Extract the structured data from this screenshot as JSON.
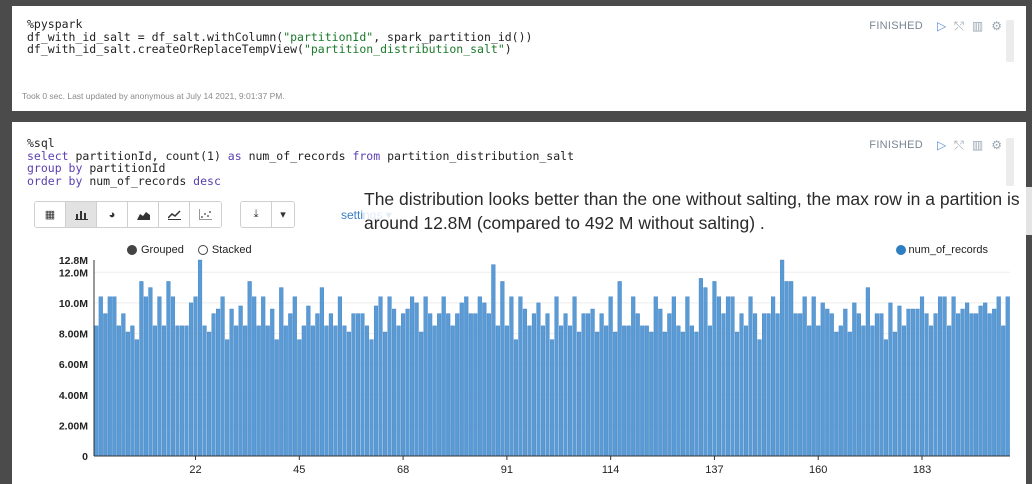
{
  "paragraph1": {
    "code_lines": [
      "%pyspark",
      "df_with_id_salt = df_salt.withColumn(\"partitionId\", spark_partition_id())",
      "df_with_id_salt.createOrReplaceTempView(\"partition_distribution_salt\")"
    ],
    "status": "FINISHED",
    "footer": "Took 0 sec. Last updated by anonymous at July 14 2021, 9:01:37 PM."
  },
  "paragraph2": {
    "code_lines": [
      "%sql",
      "select partitionId, count(1) as num_of_records from partition_distribution_salt",
      "group by partitionId",
      "order by num_of_records desc"
    ],
    "status": "FINISHED",
    "settings_label": "settings ▾",
    "annotation": "The distribution looks better than the one without salting, the max row in a partition is around 12.8M (compared to 492 M without salting) .",
    "radio_grouped": "Grouped",
    "radio_stacked": "Stacked",
    "toolbar": {
      "icons": [
        "table-icon",
        "bar-chart-icon",
        "pie-chart-icon",
        "area-chart-icon",
        "line-chart-icon",
        "scatter-chart-icon"
      ],
      "download_icon": "download-icon",
      "dropdown_icon": "caret-down-icon"
    }
  },
  "colors": {
    "bar": "#5b9bd5",
    "bar_edge": "#3d7fc0",
    "legend_dot": "#2f7ec1",
    "accent": "#3a7dc9"
  },
  "chart_data": {
    "type": "bar",
    "series": [
      {
        "name": "num_of_records",
        "values": [
          8.5,
          10.4,
          9.3,
          10.4,
          10.4,
          8.5,
          9.3,
          8.1,
          8.5,
          7.6,
          11.4,
          10.4,
          11.0,
          8.5,
          10.4,
          8.5,
          11.4,
          10.4,
          8.5,
          8.5,
          8.5,
          10.0,
          10.4,
          12.8,
          8.5,
          8.1,
          9.3,
          9.6,
          10.4,
          7.6,
          9.6,
          8.5,
          9.8,
          8.5,
          11.4,
          10.4,
          8.5,
          10.4,
          8.5,
          9.6,
          7.6,
          11.0,
          8.5,
          9.3,
          10.4,
          7.6,
          8.5,
          9.8,
          8.5,
          9.3,
          11.0,
          8.5,
          9.3,
          8.5,
          10.4,
          8.5,
          8.1,
          9.3,
          9.3,
          9.3,
          8.5,
          7.6,
          9.8,
          10.4,
          8.1,
          10.4,
          9.6,
          8.5,
          9.3,
          9.6,
          10.4,
          10.0,
          8.1,
          10.4,
          9.3,
          8.5,
          9.3,
          10.4,
          9.3,
          8.5,
          9.3,
          10.0,
          10.4,
          9.3,
          9.3,
          10.4,
          10.0,
          9.3,
          12.5,
          8.5,
          11.4,
          8.5,
          10.4,
          7.6,
          10.4,
          9.6,
          8.5,
          9.3,
          10.0,
          8.5,
          9.3,
          7.6,
          10.4,
          8.5,
          9.3,
          8.5,
          10.4,
          8.1,
          9.3,
          9.3,
          9.6,
          8.1,
          9.3,
          8.5,
          10.4,
          8.1,
          11.4,
          8.5,
          8.5,
          10.4,
          9.3,
          8.5,
          8.5,
          8.1,
          10.4,
          9.6,
          8.1,
          9.3,
          10.4,
          8.5,
          8.1,
          10.4,
          8.5,
          8.1,
          11.6,
          11.0,
          8.5,
          11.4,
          10.4,
          9.3,
          10.4,
          10.4,
          8.1,
          9.3,
          8.5,
          10.4,
          9.3,
          7.6,
          9.3,
          9.3,
          10.4,
          9.3,
          12.8,
          11.4,
          11.4,
          9.3,
          9.3,
          10.4,
          8.5,
          10.4,
          8.5,
          10.0,
          9.6,
          9.3,
          8.1,
          8.5,
          9.6,
          8.1,
          10.0,
          9.3,
          8.5,
          11.0,
          8.5,
          9.3,
          9.3,
          7.6,
          10.0,
          8.1,
          9.8,
          8.5,
          9.6,
          9.6,
          9.6,
          10.4,
          9.3,
          8.5,
          9.3,
          10.4,
          10.4,
          8.5,
          10.4,
          9.3,
          9.6,
          10.0,
          9.3,
          9.3,
          9.8,
          10.0,
          9.3,
          9.6,
          10.4,
          8.5,
          10.4
        ]
      }
    ],
    "x": {
      "start": 0,
      "count": 200,
      "ticks": [
        22,
        45,
        68,
        91,
        114,
        137,
        160,
        183
      ]
    },
    "yticks": [
      {
        "v": 0,
        "label": "0"
      },
      {
        "v": 2,
        "label": "2.00M"
      },
      {
        "v": 4,
        "label": "4.00M"
      },
      {
        "v": 6,
        "label": "6.00M"
      },
      {
        "v": 8,
        "label": "8.00M"
      },
      {
        "v": 10,
        "label": "10.0M"
      },
      {
        "v": 12,
        "label": "12.0M"
      },
      {
        "v": 12.8,
        "label": "12.8M"
      }
    ],
    "ylim": [
      0,
      12.8
    ],
    "unit": "M",
    "legend_position": "top-right",
    "grid": true
  }
}
